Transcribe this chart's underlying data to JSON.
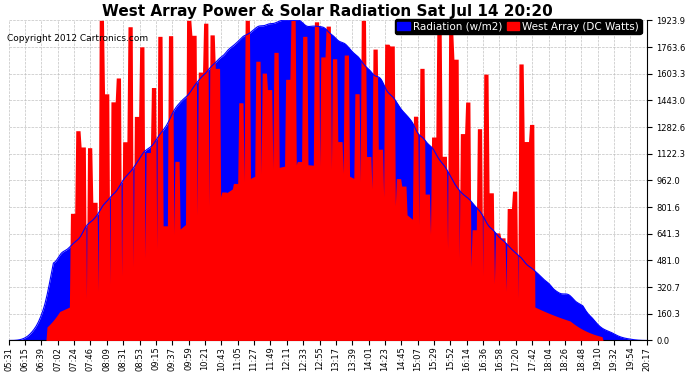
{
  "title": "West Array Power & Solar Radiation Sat Jul 14 20:20",
  "copyright": "Copyright 2012 Cartronics.com",
  "legend_radiation": "Radiation (w/m2)",
  "legend_west": "West Array (DC Watts)",
  "radiation_color": "#0000ff",
  "west_color": "#ff0000",
  "background_color": "#ffffff",
  "plot_bg_color": "#ffffff",
  "grid_color": "#bbbbbb",
  "ylim": [
    0,
    1923.9
  ],
  "yticks": [
    0.0,
    160.3,
    320.7,
    481.0,
    641.3,
    801.6,
    962.0,
    1122.3,
    1282.6,
    1443.0,
    1603.3,
    1763.6,
    1923.9
  ],
  "title_fontsize": 11,
  "copyright_fontsize": 6.5,
  "legend_fontsize": 7.5,
  "tick_fontsize": 6.0,
  "time_labels": [
    "05:31",
    "06:15",
    "06:39",
    "07:02",
    "07:24",
    "07:46",
    "08:09",
    "08:31",
    "08:53",
    "09:15",
    "09:37",
    "09:59",
    "10:21",
    "10:43",
    "11:05",
    "11:27",
    "11:49",
    "12:11",
    "12:33",
    "12:55",
    "13:17",
    "13:39",
    "14:01",
    "14:23",
    "14:45",
    "15:07",
    "15:29",
    "15:52",
    "16:14",
    "16:36",
    "16:58",
    "17:20",
    "17:42",
    "18:04",
    "18:26",
    "18:48",
    "19:10",
    "19:32",
    "19:54",
    "20:17"
  ]
}
